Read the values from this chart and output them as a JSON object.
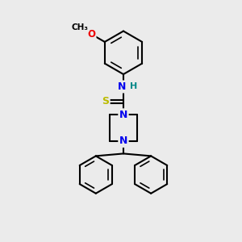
{
  "bg_color": "#ebebeb",
  "atom_colors": {
    "C": "#000000",
    "N": "#0000ee",
    "O": "#ee0000",
    "S": "#bbbb00",
    "H": "#008888"
  },
  "bond_color": "#000000",
  "figsize": [
    3.0,
    3.0
  ],
  "dpi": 100
}
